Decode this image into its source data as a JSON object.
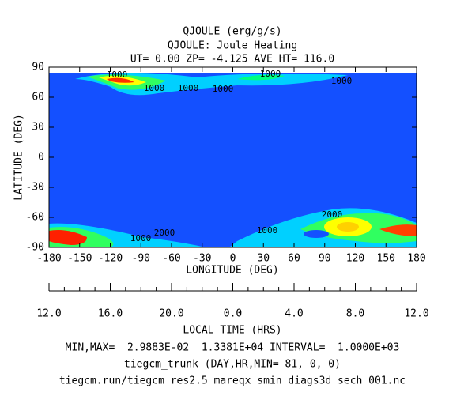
{
  "chart_data": {
    "type": "contour",
    "title": "QJOULE (erg/g/s)",
    "subtitle": "QJOULE: Joule Heating",
    "subtitle2": "UT= 0.00 ZP= -4.125 AVE HT= 116.0",
    "xlabel": "LONGITUDE (DEG)",
    "ylabel": "LATITUDE (DEG)",
    "xlim": [
      -180,
      180
    ],
    "ylim": [
      -90,
      90
    ],
    "xticks": [
      -180,
      -150,
      -120,
      -90,
      -60,
      -30,
      0,
      30,
      60,
      90,
      120,
      150,
      180
    ],
    "yticks": [
      -90,
      -60,
      -30,
      0,
      30,
      60,
      90
    ],
    "local_time_label": "LOCAL TIME (HRS)",
    "local_time_ticks": [
      "12.0",
      "16.0",
      "20.0",
      "0.0",
      "4.0",
      "8.0",
      "12.0"
    ],
    "contour_labels": [
      "1000",
      "1000",
      "1000",
      "1000",
      "1000",
      "1000",
      "2000",
      "2000",
      "1000",
      "1000"
    ],
    "footer": [
      "MIN,MAX=  2.9883E-02  1.3381E+04 INTERVAL=  1.0000E+03",
      "tiegcm_trunk (DAY,HR,MIN= 81, 0, 0)",
      "tiegcm.run/tiegcm_res2.5_mareqx_smin_diags3d_sech_001.nc"
    ]
  }
}
